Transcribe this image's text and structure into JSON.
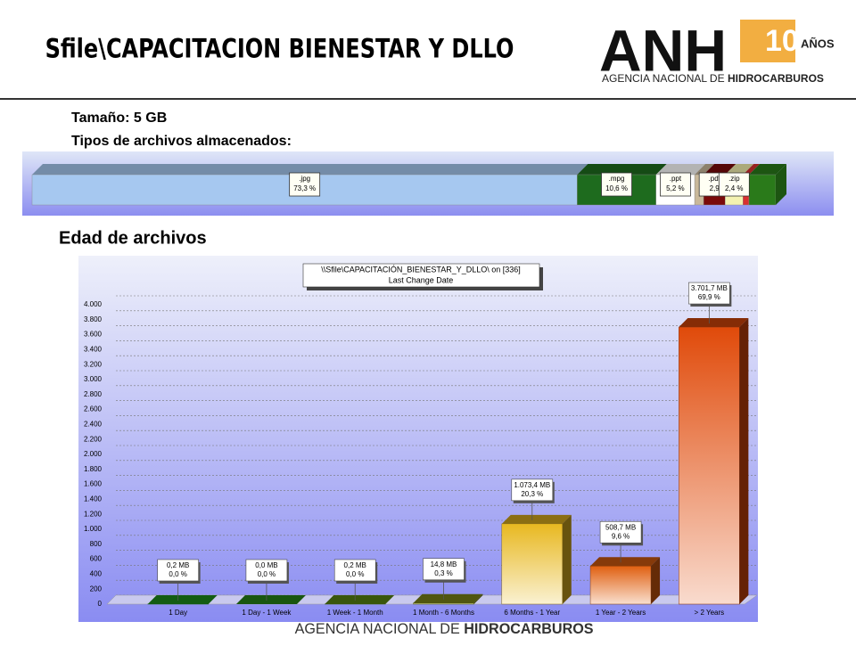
{
  "header": {
    "title": "Sfile\\CAPACITACION BIENESTAR Y DLLO",
    "logo": "ANH",
    "logo_years": "10",
    "logo_anos": "AÑOS",
    "logo_sub_prefix": "AGENCIA NACIONAL DE ",
    "logo_sub_bold": "HIDROCARBUROS"
  },
  "info": {
    "size": "Tamaño: 5 GB",
    "types_label": "Tipos de archivos almacenados:",
    "age_label": "Edad de archivos"
  },
  "footer": {
    "prefix": "AGENCIA NACIONAL DE ",
    "bold": "HIDROCARBUROS"
  },
  "chart_data": [
    {
      "type": "stacked_hbar",
      "categories": [
        ".jpg",
        ".mpg",
        ".ppt",
        null,
        ".pdf",
        ".zip",
        null,
        null
      ],
      "values": [
        73.3,
        10.6,
        5.2,
        1.2,
        2.9,
        2.4,
        0.8,
        3.6
      ],
      "value_labels": [
        "73,3 %",
        "10,6 %",
        "5,2 %",
        null,
        "2,9",
        "2,4 %",
        null,
        null
      ],
      "colors": [
        "#a6c8f0",
        "#1e6b1e",
        "#ffffff",
        "#c9b89a",
        "#7a0a0a",
        "#f4f2b0",
        "#d93030",
        "#2a7a1a"
      ]
    },
    {
      "type": "bar3d",
      "title": "\\\\Sfile\\CAPACITACIÓN_BIENESTAR_Y_DLLO\\  on  [336]",
      "subtitle": "Last Change Date",
      "categories": [
        "1 Day",
        "1 Day - 1 Week",
        "1 Week - 1 Month",
        "1 Month - 6 Months",
        "6 Months - 1 Year",
        "1 Year - 2 Years",
        "> 2 Years"
      ],
      "values": [
        0.2,
        0.0,
        0.2,
        14.8,
        1073.4,
        508.7,
        3701.7
      ],
      "value_labels": [
        "0,2 MB",
        "0,0 MB",
        "0,2 MB",
        "14,8 MB",
        "1.073,4 MB",
        "508,7 MB",
        "3.701,7 MB"
      ],
      "shares": [
        0.0,
        0.0,
        0.0,
        0.3,
        20.3,
        9.6,
        69.9
      ],
      "share_labels": [
        "0,0 %",
        "0,0 %",
        "0,0 %",
        "0,3 %",
        "20,3 %",
        "9,6 %",
        "69,9 %"
      ],
      "colors": [
        "#1f9a1f",
        "#2a8f1a",
        "#5f8f14",
        "#86901a",
        "#e8b820",
        "#e06010",
        "#e04a0a"
      ],
      "ylim": [
        0,
        4000
      ],
      "yticks": [
        0,
        200,
        400,
        600,
        800,
        {
          "value": 1000,
          "label": "1.000"
        },
        {
          "value": 1200,
          "label": "1.200"
        },
        {
          "value": 1400,
          "label": "1.400"
        },
        {
          "value": 1600,
          "label": "1.600"
        },
        {
          "value": 1800,
          "label": "1.800"
        },
        {
          "value": 2000,
          "label": "2.000"
        },
        {
          "value": 2200,
          "label": "2.200"
        },
        {
          "value": 2400,
          "label": "2.400"
        },
        {
          "value": 2600,
          "label": "2.600"
        },
        {
          "value": 2800,
          "label": "2.800"
        },
        {
          "value": 3000,
          "label": "3.000"
        },
        {
          "value": 3200,
          "label": "3.200"
        },
        {
          "value": 3400,
          "label": "3.400"
        },
        {
          "value": 3600,
          "label": "3.600"
        },
        {
          "value": 3800,
          "label": "3.800"
        },
        {
          "value": 4000,
          "label": "4.000"
        }
      ],
      "grid": true
    }
  ]
}
